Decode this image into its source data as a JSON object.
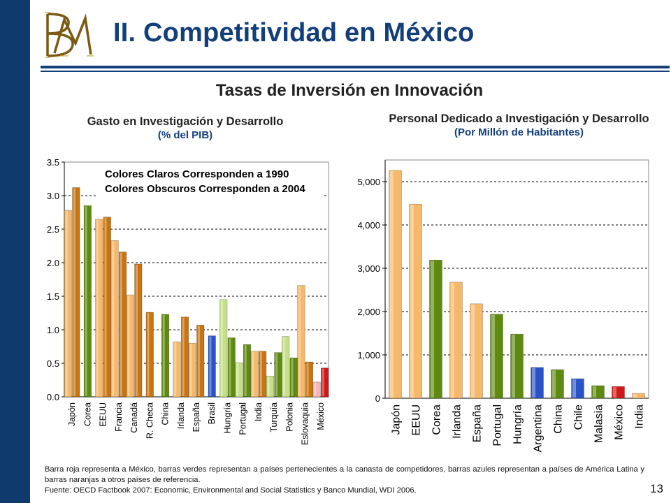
{
  "header": {
    "title": "II. Competitividad en México",
    "subtitle": "Tasas de Inversión en Innovación",
    "logo_text": "BM"
  },
  "colors": {
    "sidebar": "#0f3a6e",
    "title": "#123f7a",
    "orange_dark": "#c8740f",
    "orange_light": "#f6b86a",
    "green_dark": "#5f8a10",
    "green_light": "#c6e08a",
    "blue": "#2a53c8",
    "red": "#d11818",
    "pink": "#f6b3b8"
  },
  "chart_data": [
    {
      "type": "bar",
      "title": "Gasto en Investigación y Desarrollo",
      "unit": "(% del PIB)",
      "ylim": [
        0,
        3.5
      ],
      "yticks": [
        "0.0",
        "0.5",
        "1.0",
        "1.5",
        "2.0",
        "2.5",
        "3.0",
        "3.5"
      ],
      "grid": true,
      "annotation": [
        "Colores Claros Corresponden a 1990",
        "Colores Obscuros Corresponden a 2004"
      ],
      "categories": [
        "Japón",
        "Corea",
        "EEUU",
        "Francia",
        "Canadá",
        "R. Checa",
        "China",
        "Irlanda",
        "España",
        "Brasil",
        "Hungría",
        "Portugal",
        "India",
        "Turquía",
        "Polonia",
        "Eslovaquia",
        "México"
      ],
      "series": [
        {
          "values": [
            2.78,
            null,
            2.65,
            2.33,
            1.52,
            null,
            null,
            0.82,
            0.8,
            null,
            1.45,
            0.51,
            0.68,
            0.31,
            0.9,
            1.66,
            0.22
          ]
        },
        {
          "values": [
            3.12,
            2.85,
            2.68,
            2.16,
            1.98,
            1.26,
            1.23,
            1.19,
            1.07,
            0.91,
            0.88,
            0.78,
            0.68,
            0.66,
            0.58,
            0.52,
            0.43
          ]
        }
      ],
      "bar_colors": [
        "orange",
        "green",
        "orange",
        "orange",
        "orange",
        "orange",
        "green",
        "orange",
        "orange",
        "blue",
        "green",
        "green",
        "orange",
        "green",
        "green",
        "orange",
        "red"
      ]
    },
    {
      "type": "bar",
      "title": "Personal Dedicado a Investigación y Desarrollo",
      "unit": "(Por Millón de Habitantes)",
      "ylim": [
        0,
        5500
      ],
      "yticks": [
        "0",
        "1,000",
        "2,000",
        "3,000",
        "4,000",
        "5,000"
      ],
      "grid": true,
      "categories": [
        "Japón",
        "EEUU",
        "Corea",
        "Irlanda",
        "España",
        "Portugal",
        "Hungría",
        "Argentina",
        "China",
        "Chile",
        "Malasia",
        "México",
        "India"
      ],
      "values": [
        5260,
        4480,
        3190,
        2680,
        2180,
        1940,
        1480,
        710,
        660,
        450,
        290,
        270,
        110
      ],
      "bar_colors": [
        "orange",
        "orange",
        "green",
        "orange",
        "orange",
        "green",
        "green",
        "blue",
        "green",
        "blue",
        "green",
        "red",
        "orange"
      ]
    }
  ],
  "footnote": {
    "line1": "Barra roja representa a México, barras verdes representan a países pertenecientes a la canasta de competidores, barras azules representan a países de América Latina y barras naranjas a otros países de referencia.",
    "line2": "Fuente: OECD Factbook 2007: Economic, Environmental and Social Statistics y Banco Mundial, WDI 2006."
  },
  "page_number": "13"
}
